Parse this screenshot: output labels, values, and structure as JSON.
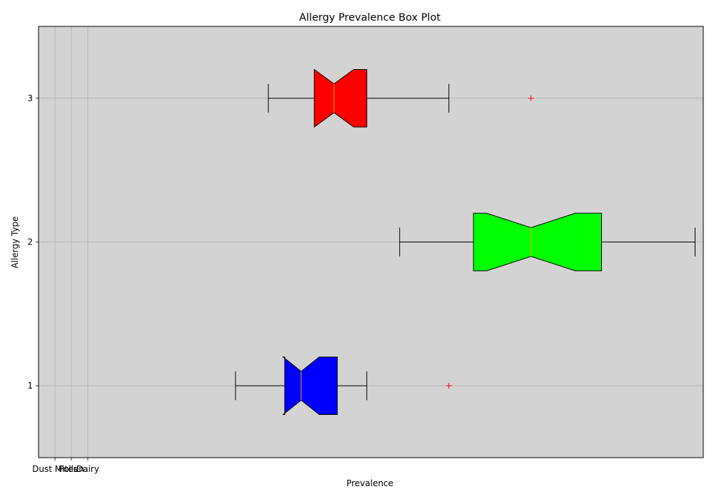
{
  "chart_data": {
    "type": "boxplot",
    "orientation": "horizontal",
    "title": "Allergy Prevalence Box Plot",
    "xlabel": "Prevalence",
    "ylabel": "Allergy Type",
    "x_tick_labels": [
      "Dust Mites",
      "Pollen",
      "Dairy"
    ],
    "y_ticks": [
      1,
      2,
      3
    ],
    "ylim": [
      0.5,
      3.5
    ],
    "grid": true,
    "background_color": "#d3d3d3",
    "median_color": "#ffa500",
    "outlier_color": "#ff0000",
    "boxes": [
      {
        "position": 1,
        "color": "#0000ff",
        "whisker_low": 11.0,
        "q1": 14.0,
        "median": 15.0,
        "q3": 17.2,
        "whisker_high": 19.0,
        "notch_low": 13.9,
        "notch_high": 16.1,
        "outliers": [
          24.0
        ]
      },
      {
        "position": 2,
        "color": "#00ff00",
        "whisker_low": 21.0,
        "q1": 25.5,
        "median": 29.0,
        "q3": 33.3,
        "whisker_high": 39.0,
        "notch_low": 26.3,
        "notch_high": 31.7,
        "outliers": []
      },
      {
        "position": 3,
        "color": "#ff0000",
        "whisker_low": 13.0,
        "q1": 15.8,
        "median": 17.0,
        "q3": 19.0,
        "whisker_high": 24.0,
        "notch_low": 15.8,
        "notch_high": 18.2,
        "outliers": [
          29.0
        ]
      }
    ]
  }
}
